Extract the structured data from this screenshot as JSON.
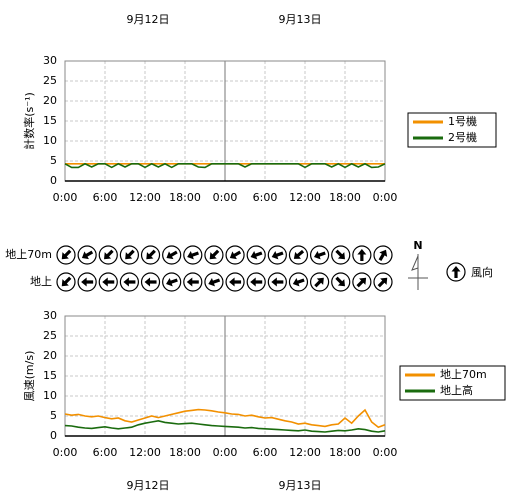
{
  "dates": [
    "9月12日",
    "9月13日"
  ],
  "chart_data": [
    {
      "type": "line",
      "ylabel": "計数率(s⁻¹)",
      "x": [
        0,
        1,
        2,
        3,
        4,
        5,
        6,
        7,
        8,
        9,
        10,
        11,
        12,
        13,
        14,
        15,
        16,
        17,
        18,
        19,
        20,
        21,
        22,
        23,
        24,
        25,
        26,
        27,
        28,
        29,
        30,
        31,
        32,
        33,
        34,
        35,
        36,
        37,
        38,
        39,
        40,
        41,
        42,
        43,
        44,
        45,
        46,
        47,
        48
      ],
      "xlim": [
        0,
        48
      ],
      "xticks": [
        {
          "value": 0,
          "label": "0:00"
        },
        {
          "value": 6,
          "label": "6:00"
        },
        {
          "value": 12,
          "label": "12:00"
        },
        {
          "value": 18,
          "label": "18:00"
        },
        {
          "value": 24,
          "label": "0:00"
        },
        {
          "value": 30,
          "label": "6:00"
        },
        {
          "value": 36,
          "label": "12:00"
        },
        {
          "value": 42,
          "label": "18:00"
        },
        {
          "value": 48,
          "label": "0:00"
        }
      ],
      "ylim": [
        0,
        30
      ],
      "yticks": [
        0,
        5,
        10,
        15,
        20,
        25,
        30
      ],
      "grid": true,
      "series": [
        {
          "name": "1号機",
          "color": "#f29000",
          "values": [
            4.3,
            4.3,
            4.3,
            4.3,
            4.3,
            4.3,
            4.3,
            4.3,
            4.3,
            4.3,
            4.3,
            4.3,
            4.3,
            4.3,
            4.3,
            4.3,
            4.3,
            4.3,
            4.3,
            4.3,
            4.3,
            4.3,
            4.3,
            4.3,
            4.3,
            4.3,
            4.3,
            4.3,
            4.3,
            4.3,
            4.3,
            4.3,
            4.3,
            4.3,
            4.3,
            4.3,
            4.3,
            4.3,
            4.3,
            4.3,
            4.3,
            4.3,
            4.3,
            4.3,
            4.3,
            4.3,
            4.3,
            4.3,
            4.3
          ]
        },
        {
          "name": "2号機",
          "color": "#1a6b0e",
          "values": [
            4.3,
            3.4,
            3.4,
            4.3,
            3.5,
            4.3,
            4.3,
            3.4,
            4.3,
            3.5,
            4.3,
            4.3,
            3.4,
            4.3,
            3.5,
            4.3,
            3.4,
            4.3,
            4.3,
            4.3,
            3.5,
            3.4,
            4.3,
            4.3,
            4.3,
            4.3,
            4.3,
            3.5,
            4.3,
            4.3,
            4.3,
            4.3,
            4.3,
            4.3,
            4.3,
            4.3,
            3.4,
            4.3,
            4.3,
            4.3,
            3.5,
            4.3,
            3.4,
            4.3,
            3.5,
            4.3,
            3.4,
            3.5,
            4.3
          ]
        }
      ]
    },
    {
      "type": "wind_arrows",
      "north_label": "N",
      "legend_label": "風向",
      "rows": [
        {
          "name": "地上70m",
          "directions": [
            225,
            240,
            225,
            225,
            225,
            240,
            250,
            225,
            240,
            250,
            250,
            230,
            250,
            135,
            0,
            30
          ]
        },
        {
          "name": "地上",
          "directions": [
            225,
            270,
            270,
            270,
            270,
            250,
            270,
            250,
            270,
            270,
            270,
            250,
            45,
            135,
            45,
            45
          ]
        }
      ]
    },
    {
      "type": "line",
      "ylabel": "風速(m/s)",
      "x": [
        0,
        1,
        2,
        3,
        4,
        5,
        6,
        7,
        8,
        9,
        10,
        11,
        12,
        13,
        14,
        15,
        16,
        17,
        18,
        19,
        20,
        21,
        22,
        23,
        24,
        25,
        26,
        27,
        28,
        29,
        30,
        31,
        32,
        33,
        34,
        35,
        36,
        37,
        38,
        39,
        40,
        41,
        42,
        43,
        44,
        45,
        46,
        47,
        48
      ],
      "xlim": [
        0,
        48
      ],
      "xticks": [
        {
          "value": 0,
          "label": "0:00"
        },
        {
          "value": 6,
          "label": "6:00"
        },
        {
          "value": 12,
          "label": "12:00"
        },
        {
          "value": 18,
          "label": "18:00"
        },
        {
          "value": 24,
          "label": "0:00"
        },
        {
          "value": 30,
          "label": "6:00"
        },
        {
          "value": 36,
          "label": "12:00"
        },
        {
          "value": 42,
          "label": "18:00"
        },
        {
          "value": 48,
          "label": "0:00"
        }
      ],
      "ylim": [
        0,
        30
      ],
      "yticks": [
        0,
        5,
        10,
        15,
        20,
        25,
        30
      ],
      "grid": true,
      "series": [
        {
          "name": "地上70m",
          "color": "#f29000",
          "values": [
            5.5,
            5.2,
            5.4,
            5,
            4.8,
            5,
            4.6,
            4.3,
            4.5,
            3.8,
            3.5,
            4,
            4.5,
            5,
            4.6,
            5,
            5.4,
            5.8,
            6.2,
            6.4,
            6.6,
            6.5,
            6.3,
            6,
            5.8,
            5.5,
            5.4,
            5,
            5.2,
            4.8,
            4.5,
            4.6,
            4.2,
            3.8,
            3.5,
            3,
            3.2,
            2.8,
            2.6,
            2.4,
            2.8,
            3,
            4.5,
            3.2,
            5,
            6.5,
            3.5,
            2.2,
            2.8
          ]
        },
        {
          "name": "地上高",
          "color": "#1a6b0e",
          "values": [
            2.6,
            2.5,
            2.2,
            2,
            1.9,
            2.1,
            2.3,
            2,
            1.8,
            2,
            2.2,
            2.8,
            3.2,
            3.5,
            3.8,
            3.4,
            3.2,
            3,
            3.1,
            3.2,
            3,
            2.8,
            2.6,
            2.5,
            2.4,
            2.3,
            2.2,
            2,
            2.1,
            1.9,
            1.8,
            1.7,
            1.6,
            1.5,
            1.4,
            1.3,
            1.5,
            1.2,
            1.1,
            1,
            1.2,
            1.4,
            1.3,
            1.5,
            1.8,
            1.6,
            1.2,
            1,
            1.3
          ]
        }
      ]
    }
  ]
}
